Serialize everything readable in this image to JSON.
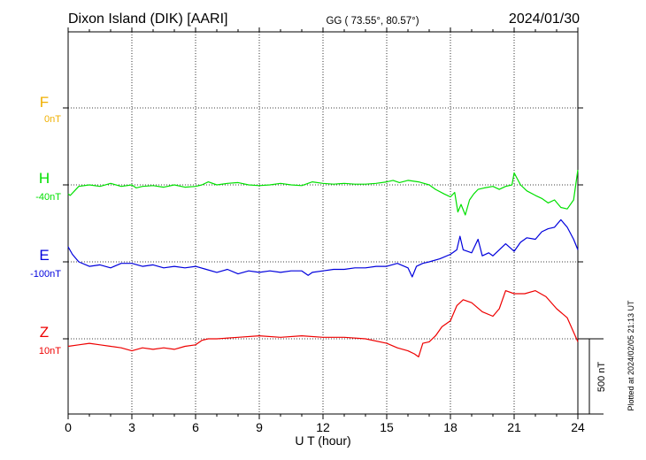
{
  "header": {
    "station": "Dixon Island (DIK)  [AARI]",
    "coords": "GG ( 73.55°,  80.57°)",
    "date": "2024/01/30"
  },
  "side_note": "Plotted at 2024/02/05 21:13 UT",
  "scale_label": "500 nT",
  "chart_data": {
    "type": "line",
    "xlabel": "U T (hour)",
    "xlim": [
      0,
      24
    ],
    "xticks": [
      "0",
      "3",
      "6",
      "9",
      "12",
      "15",
      "18",
      "21",
      "24"
    ],
    "y_unit": "nT",
    "scale_bar_nT": 500,
    "series": [
      {
        "name": "F",
        "baseline_label": "0nT",
        "color": "#f0b000",
        "x": [],
        "values": []
      },
      {
        "name": "H",
        "baseline_label": "-40nT",
        "color": "#00e000",
        "x": [
          0,
          0.1,
          0.3,
          0.5,
          1,
          1.5,
          2,
          2.5,
          3,
          3.2,
          3.5,
          4,
          4.5,
          5,
          5.5,
          6,
          6.3,
          6.6,
          7,
          7.5,
          8,
          8.5,
          9,
          9.5,
          10,
          10.5,
          11,
          11.5,
          12,
          12.5,
          13,
          13.5,
          14,
          14.5,
          15,
          15.3,
          15.6,
          16,
          16.5,
          17,
          17.3,
          17.7,
          18,
          18.2,
          18.35,
          18.5,
          18.7,
          18.9,
          19.1,
          19.3,
          19.6,
          20,
          20.3,
          20.6,
          20.9,
          21,
          21.3,
          21.6,
          22,
          22.3,
          22.6,
          22.9,
          23.2,
          23.5,
          23.8,
          24
        ],
        "values": [
          -60,
          -70,
          -40,
          -10,
          0,
          -10,
          10,
          -10,
          0,
          -20,
          -10,
          -5,
          -15,
          0,
          -15,
          -10,
          0,
          20,
          0,
          10,
          15,
          0,
          -5,
          0,
          10,
          0,
          -5,
          20,
          10,
          5,
          10,
          5,
          5,
          10,
          20,
          30,
          15,
          30,
          20,
          0,
          -30,
          -60,
          -80,
          -50,
          -180,
          -130,
          -200,
          -100,
          -60,
          -30,
          -20,
          -10,
          -30,
          -10,
          0,
          80,
          0,
          -40,
          -70,
          -90,
          -120,
          -100,
          -150,
          -160,
          -100,
          100
        ]
      },
      {
        "name": "E",
        "baseline_label": "-100nT",
        "color": "#0000dd",
        "x": [
          0,
          0.2,
          0.5,
          1,
          1.5,
          2,
          2.5,
          3,
          3.5,
          4,
          4.5,
          5,
          5.5,
          6,
          6.5,
          7,
          7.5,
          8,
          8.5,
          9,
          9.5,
          10,
          10.5,
          11,
          11.3,
          11.5,
          12,
          12.5,
          13,
          13.5,
          14,
          14.5,
          15,
          15.5,
          16,
          16.2,
          16.4,
          16.7,
          17,
          17.5,
          18,
          18.3,
          18.45,
          18.6,
          18.8,
          19,
          19.3,
          19.5,
          19.8,
          20,
          20.3,
          20.6,
          21,
          21.3,
          21.6,
          22,
          22.3,
          22.6,
          22.9,
          23.2,
          23.5,
          23.8,
          24
        ],
        "values": [
          100,
          50,
          0,
          -30,
          -20,
          -40,
          -10,
          -10,
          -30,
          -20,
          -40,
          -30,
          -40,
          -30,
          -50,
          -70,
          -50,
          -80,
          -60,
          -70,
          -60,
          -70,
          -60,
          -60,
          -90,
          -70,
          -60,
          -50,
          -50,
          -40,
          -40,
          -30,
          -30,
          -10,
          -40,
          -100,
          -30,
          -10,
          0,
          20,
          50,
          80,
          170,
          80,
          70,
          60,
          150,
          40,
          60,
          40,
          80,
          120,
          70,
          130,
          160,
          150,
          200,
          220,
          230,
          280,
          230,
          150,
          80
        ]
      },
      {
        "name": "Z",
        "baseline_label": "10nT",
        "color": "#ee0000",
        "x": [
          0,
          0.5,
          1,
          1.5,
          2,
          2.5,
          3,
          3.5,
          4,
          4.5,
          5,
          5.5,
          6,
          6.3,
          6.6,
          7,
          8,
          9,
          10,
          11,
          12,
          13,
          14,
          15,
          15.5,
          16,
          16.3,
          16.5,
          16.7,
          17,
          17.3,
          17.6,
          18,
          18.3,
          18.6,
          19,
          19.5,
          20,
          20.3,
          20.6,
          21,
          21.5,
          22,
          22.5,
          23,
          23.5,
          24
        ],
        "values": [
          -50,
          -40,
          -30,
          -40,
          -50,
          -60,
          -80,
          -60,
          -70,
          -60,
          -70,
          -50,
          -40,
          -10,
          0,
          0,
          10,
          20,
          10,
          20,
          10,
          10,
          0,
          -30,
          -60,
          -80,
          -100,
          -120,
          -30,
          -20,
          20,
          80,
          120,
          220,
          260,
          240,
          180,
          150,
          200,
          320,
          300,
          300,
          320,
          280,
          200,
          140,
          -20
        ]
      }
    ]
  }
}
